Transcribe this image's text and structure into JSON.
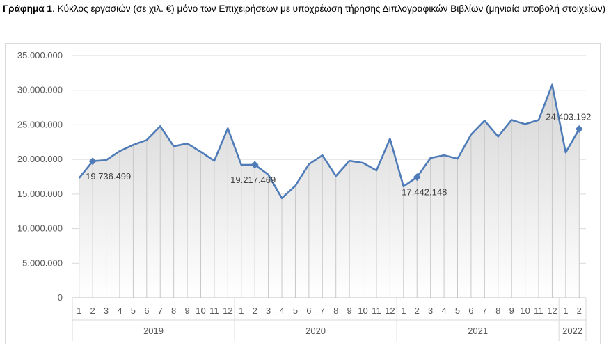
{
  "caption": {
    "label": "Γράφημα 1",
    "text_before": ". Κύκλος εργασιών (σε χιλ. €) ",
    "underlined": "μόνο",
    "text_after": " των Επιχειρήσεων με υποχρέωση τήρησης Διπλογραφικών Βιβλίων (μηνιαία υποβολή στοιχείων)"
  },
  "colors": {
    "line": "#4f7cb8",
    "droplines": "#c8c8c8",
    "gridlines": "#d9d9d9",
    "area_top": "#d6d6d6",
    "area_bottom": "#ffffff",
    "axis_text": "#595959"
  },
  "chart_data": {
    "type": "line",
    "title": "",
    "xlabel": "",
    "ylabel": "",
    "ylim": [
      0,
      35000000
    ],
    "y_ticks": [
      0,
      5000000,
      10000000,
      15000000,
      20000000,
      25000000,
      30000000,
      35000000
    ],
    "y_tick_labels": [
      "0",
      "5.000.000",
      "10.000.000",
      "15.000.000",
      "20.000.000",
      "25.000.000",
      "30.000.000",
      "35.000.000"
    ],
    "grid": true,
    "legend": "none",
    "years": [
      {
        "label": "2019",
        "months": [
          "1",
          "2",
          "3",
          "4",
          "5",
          "6",
          "7",
          "8",
          "9",
          "10",
          "11",
          "12"
        ]
      },
      {
        "label": "2020",
        "months": [
          "1",
          "2",
          "3",
          "4",
          "5",
          "6",
          "7",
          "8",
          "9",
          "10",
          "11",
          "12"
        ]
      },
      {
        "label": "2021",
        "months": [
          "1",
          "2",
          "3",
          "4",
          "5",
          "6",
          "7",
          "8",
          "9",
          "10",
          "11",
          "12"
        ]
      },
      {
        "label": "2022",
        "months": [
          "1",
          "2"
        ]
      }
    ],
    "values": [
      17300000,
      19736499,
      19900000,
      21200000,
      22100000,
      22800000,
      24800000,
      21900000,
      22300000,
      21100000,
      19800000,
      24500000,
      19200000,
      19217469,
      17800000,
      14400000,
      16200000,
      19300000,
      20600000,
      17600000,
      19800000,
      19500000,
      18400000,
      23000000,
      16100000,
      17442148,
      20200000,
      20600000,
      20100000,
      23600000,
      25600000,
      23300000,
      25700000,
      25100000,
      25700000,
      30800000,
      21000000,
      24403192
    ],
    "data_labels": [
      {
        "index": 1,
        "text": "19.736.499"
      },
      {
        "index": 13,
        "text": "19.217.469"
      },
      {
        "index": 25,
        "text": "17.442.148"
      },
      {
        "index": 37,
        "text": "24.403.192"
      }
    ]
  }
}
